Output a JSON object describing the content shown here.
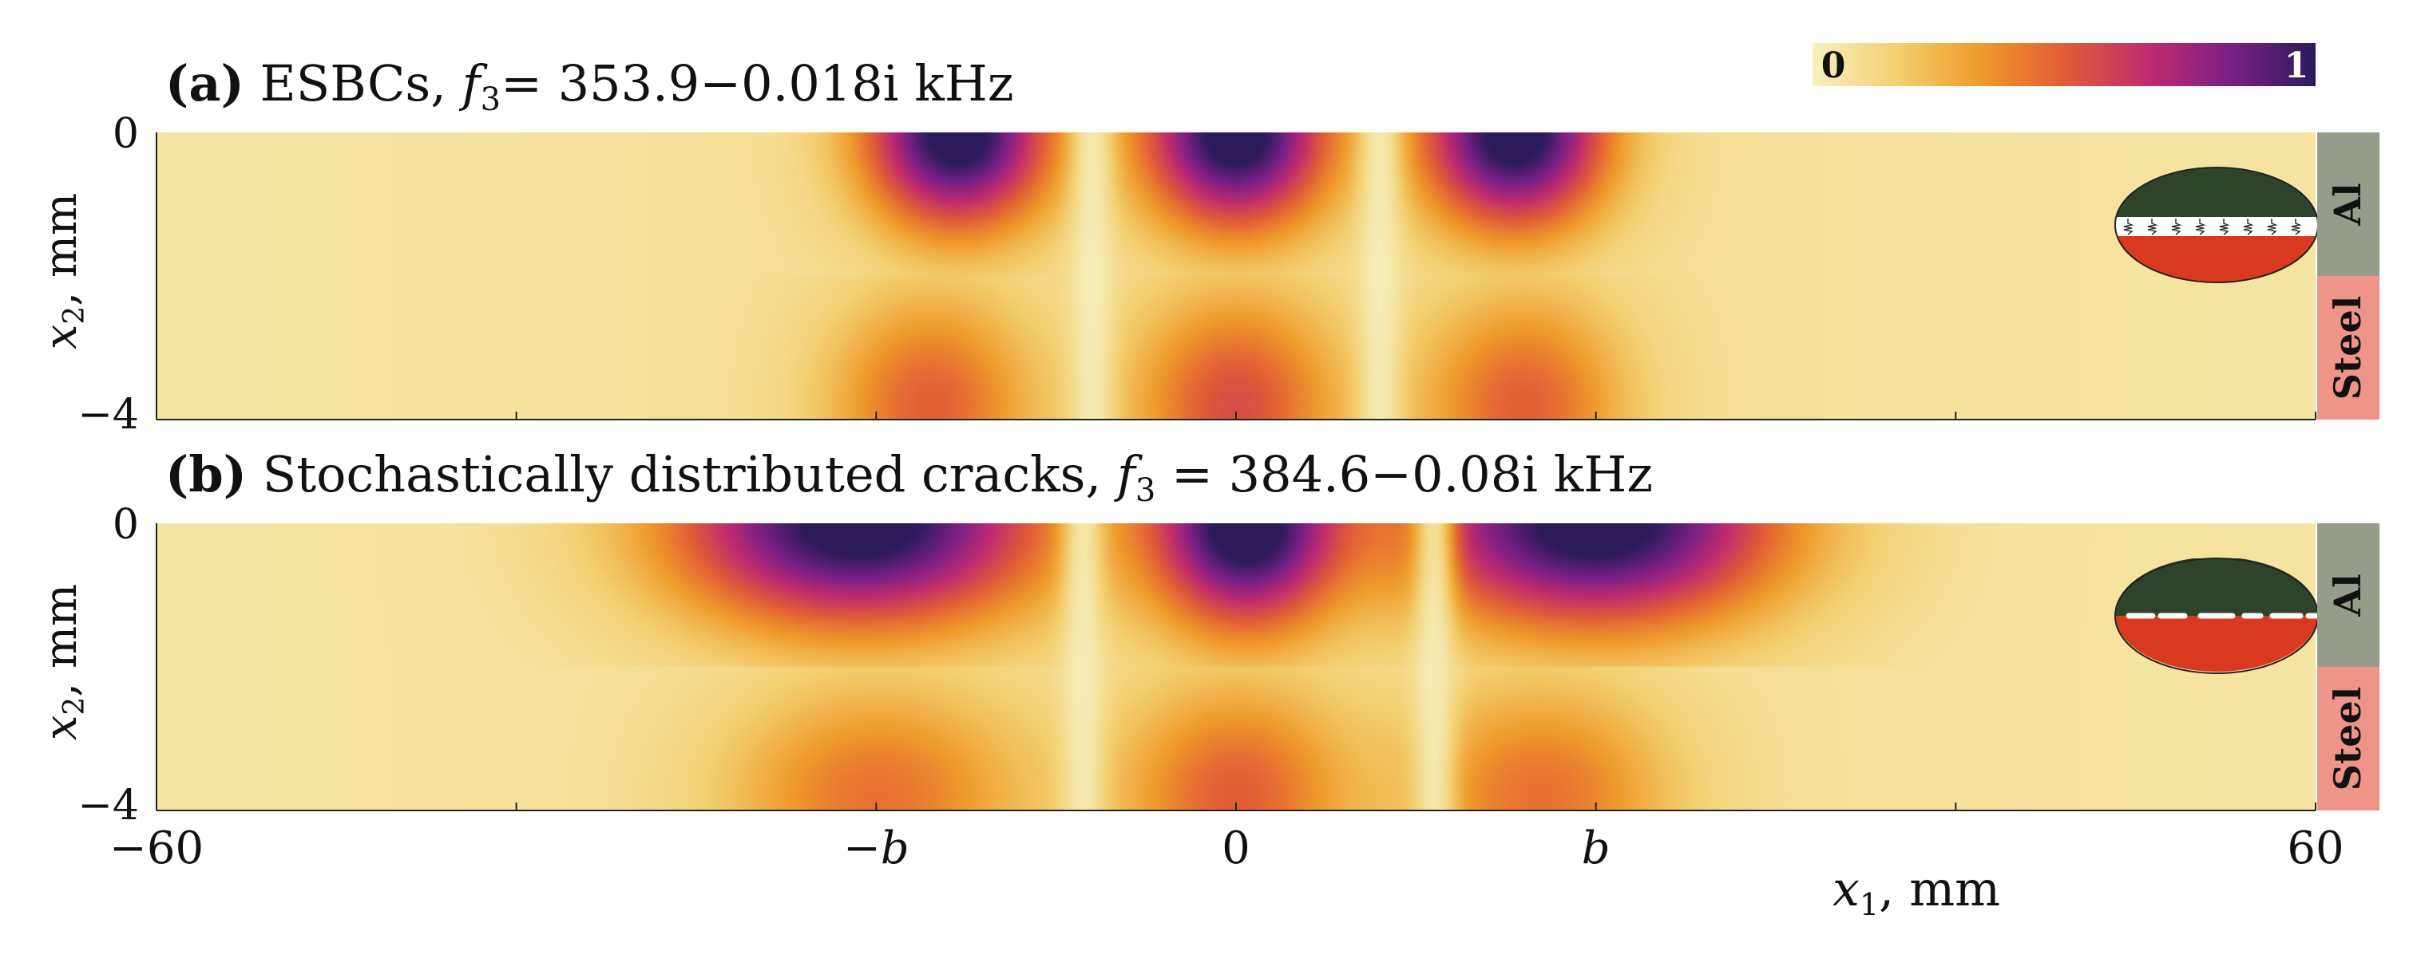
{
  "chart_data": {
    "type": "heatmap",
    "colorbar": {
      "min_label": "0",
      "max_label": "1",
      "stops": [
        "#f7f0c0",
        "#f3d071",
        "#ef9b2a",
        "#e25c36",
        "#c02c6e",
        "#7a1f86",
        "#2b1b5c"
      ]
    },
    "xaxis": {
      "label_var": "x",
      "label_sub": "1",
      "label_unit": ", mm",
      "range": [
        -60,
        60
      ],
      "b": 20,
      "tick_values": [
        -60,
        -40,
        -20,
        0,
        20,
        40,
        60
      ],
      "tick_labels": [
        {
          "value": -60,
          "text": "−60",
          "italic": false
        },
        {
          "value": -20,
          "text": "−b",
          "italic": true
        },
        {
          "value": 0,
          "text": "0",
          "italic": false
        },
        {
          "value": 20,
          "text": "b",
          "italic": true
        },
        {
          "value": 60,
          "text": "60",
          "italic": false
        }
      ]
    },
    "panels": [
      {
        "id": "a",
        "tag": "(a)",
        "title_text": " ESBCs, ",
        "freq_var": "f",
        "freq_sub": "3",
        "freq_value": "= 353.9−0.018i kHz",
        "ylabel_var": "x",
        "ylabel_sub": "2",
        "ylabel_unit": ", mm",
        "yrange": [
          -4,
          0
        ],
        "ytick_labels": [
          "0",
          "−4"
        ],
        "layers": [
          {
            "name": "Al",
            "color": "#969c8c",
            "y_range": [
              -2,
              0
            ]
          },
          {
            "name": "Steel",
            "color": "#ee9488",
            "y_range": [
              -4,
              -2
            ]
          }
        ],
        "inset": {
          "top_color": "#2e442a",
          "bottom_color": "#d93a1f",
          "interface": "springs"
        },
        "field": {
          "interface_depth": -2,
          "top_lobes": [
            {
              "x": -15.5,
              "amplitude": 1.0,
              "width": 5.0,
              "depth": 1.3
            },
            {
              "x": 0,
              "amplitude": 1.0,
              "width": 5.0,
              "depth": 1.3
            },
            {
              "x": 15.5,
              "amplitude": 1.0,
              "width": 5.0,
              "depth": 1.3
            }
          ],
          "bottom_lobes": [
            {
              "x": -17,
              "amplitude": 0.4,
              "width": 5.5,
              "depth": 1.5
            },
            {
              "x": 0,
              "amplitude": 0.45,
              "width": 5.5,
              "depth": 1.5
            },
            {
              "x": 16,
              "amplitude": 0.4,
              "width": 5.5,
              "depth": 1.5
            }
          ],
          "nodes": [
            -8,
            8
          ]
        }
      },
      {
        "id": "b",
        "tag": "(b)",
        "title_text": " Stochastically distributed cracks, ",
        "freq_var": "f",
        "freq_sub": "3",
        "freq_value": " = 384.6−0.08i kHz",
        "ylabel_var": "x",
        "ylabel_sub": "2",
        "ylabel_unit": ", mm",
        "yrange": [
          -4,
          0
        ],
        "ytick_labels": [
          "0",
          "−4"
        ],
        "layers": [
          {
            "name": "Al",
            "color": "#969c8c",
            "y_range": [
              -2,
              0
            ]
          },
          {
            "name": "Steel",
            "color": "#ee9488",
            "y_range": [
              -4,
              -2
            ]
          }
        ],
        "inset": {
          "top_color": "#2e442a",
          "bottom_color": "#d93a1f",
          "interface": "cracks"
        },
        "field": {
          "interface_depth": -2,
          "top_lobes": [
            {
              "x": -21,
              "amplitude": 1.0,
              "width": 10.0,
              "depth": 1.4
            },
            {
              "x": 0.5,
              "amplitude": 1.0,
              "width": 5.0,
              "depth": 1.4
            },
            {
              "x": 20,
              "amplitude": 1.0,
              "width": 10.0,
              "depth": 1.4
            }
          ],
          "bottom_lobes": [
            {
              "x": -20,
              "amplitude": 0.35,
              "width": 8.0,
              "depth": 1.5
            },
            {
              "x": 0,
              "amplitude": 0.4,
              "width": 6.0,
              "depth": 1.5
            },
            {
              "x": 17,
              "amplitude": 0.35,
              "width": 7.0,
              "depth": 1.5
            }
          ],
          "nodes": [
            -8.5,
            11
          ]
        }
      }
    ]
  }
}
